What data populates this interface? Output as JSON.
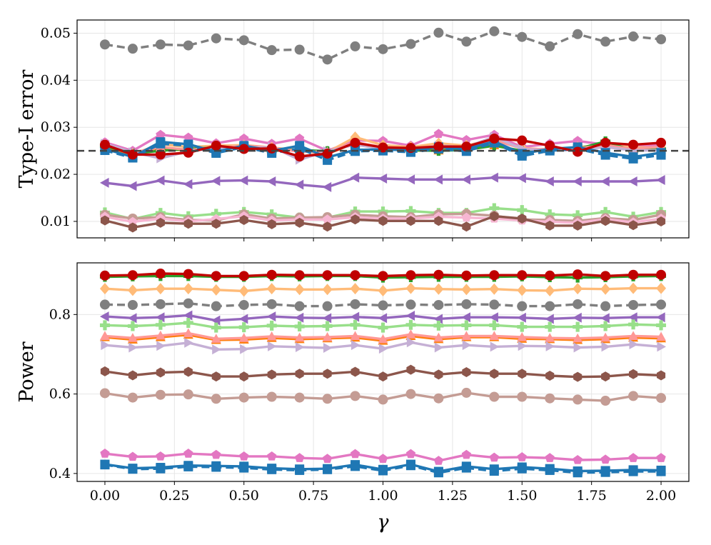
{
  "chart_data": [
    {
      "type": "line",
      "panel": "top",
      "ylabel": "Type-I error",
      "xlabel": "",
      "ylim": [
        0.0065,
        0.0528
      ],
      "yticks": [
        0.01,
        0.02,
        0.03,
        0.04,
        0.05
      ],
      "ytick_labels": [
        "0.01",
        "0.02",
        "0.03",
        "0.04",
        "0.05"
      ],
      "reference_line": 0.025,
      "grid": true,
      "x": [
        0,
        0.1,
        0.2,
        0.3,
        0.4,
        0.5,
        0.6,
        0.7,
        0.8,
        0.9,
        1.0,
        1.1,
        1.2,
        1.3,
        1.4,
        1.5,
        1.6,
        1.7,
        1.8,
        1.9,
        2.0
      ],
      "series": [
        {
          "name": "gray",
          "color": "#7f7f7f",
          "marker": "circle",
          "dashed": true,
          "values": [
            0.0476,
            0.0467,
            0.0476,
            0.0474,
            0.0489,
            0.0485,
            0.0464,
            0.0465,
            0.0444,
            0.0472,
            0.0466,
            0.0477,
            0.0501,
            0.0482,
            0.0504,
            0.0492,
            0.0472,
            0.0498,
            0.0482,
            0.0493,
            0.0487
          ]
        },
        {
          "name": "pink",
          "color": "#e377c2",
          "marker": "pentagon",
          "values": [
            0.0268,
            0.025,
            0.0284,
            0.0278,
            0.0266,
            0.0276,
            0.0265,
            0.0276,
            0.025,
            0.0272,
            0.0271,
            0.0261,
            0.0286,
            0.0273,
            0.0284,
            0.0258,
            0.0265,
            0.0271,
            0.0263,
            0.0258,
            0.0263
          ]
        },
        {
          "name": "orange",
          "color": "#ff7f0e",
          "marker": "triangle-up",
          "values": [
            0.0258,
            0.024,
            0.0254,
            0.0251,
            0.0259,
            0.0257,
            0.0253,
            0.0251,
            0.0244,
            0.0266,
            0.0255,
            0.0256,
            0.0251,
            0.0258,
            0.0262,
            0.0249,
            0.0253,
            0.0251,
            0.0263,
            0.0255,
            0.0252
          ]
        },
        {
          "name": "light-orange",
          "color": "#ffbb78",
          "marker": "diamond",
          "values": [
            0.0263,
            0.0243,
            0.0264,
            0.0258,
            0.0261,
            0.0262,
            0.0257,
            0.0251,
            0.0247,
            0.0279,
            0.0262,
            0.0258,
            0.0266,
            0.0261,
            0.0275,
            0.0256,
            0.0252,
            0.0258,
            0.0262,
            0.0257,
            0.0257
          ]
        },
        {
          "name": "green",
          "color": "#2ca02c",
          "marker": "plus",
          "values": [
            0.026,
            0.0244,
            0.025,
            0.0254,
            0.0257,
            0.0259,
            0.025,
            0.0252,
            0.0249,
            0.0264,
            0.0254,
            0.0251,
            0.025,
            0.0252,
            0.0261,
            0.025,
            0.0254,
            0.0254,
            0.027,
            0.025,
            0.0253
          ]
        },
        {
          "name": "salmon",
          "color": "#ff9896",
          "marker": "triangle-up",
          "values": [
            0.0262,
            0.0246,
            0.0258,
            0.0252,
            0.0256,
            0.0261,
            0.0257,
            0.0248,
            0.0248,
            0.0268,
            0.0258,
            0.0255,
            0.0261,
            0.0256,
            0.0272,
            0.0255,
            0.0253,
            0.0255,
            0.0262,
            0.0254,
            0.0259
          ]
        },
        {
          "name": "lavender",
          "color": "#c5b0d5",
          "marker": "triangle-right",
          "values": [
            0.0265,
            0.0247,
            0.0234,
            0.0249,
            0.0256,
            0.0256,
            0.0258,
            0.0231,
            0.0249,
            0.0263,
            0.0254,
            0.0252,
            0.0261,
            0.0258,
            0.028,
            0.0254,
            0.0251,
            0.0252,
            0.0258,
            0.0251,
            0.0251
          ]
        },
        {
          "name": "blue-dashed",
          "color": "#1f77b4",
          "marker": "square",
          "dashed": true,
          "values": [
            0.0251,
            0.0235,
            0.0265,
            0.0261,
            0.0245,
            0.0258,
            0.0245,
            0.0255,
            0.023,
            0.0249,
            0.025,
            0.0247,
            0.0254,
            0.0249,
            0.0267,
            0.0239,
            0.025,
            0.0254,
            0.0241,
            0.0233,
            0.0241
          ]
        },
        {
          "name": "blue",
          "color": "#1f77b4",
          "marker": "square",
          "values": [
            0.0254,
            0.0237,
            0.0269,
            0.0264,
            0.0248,
            0.0261,
            0.025,
            0.0261,
            0.0236,
            0.0252,
            0.0253,
            0.0251,
            0.0258,
            0.0254,
            0.027,
            0.0244,
            0.0254,
            0.0258,
            0.0246,
            0.0237,
            0.0246
          ]
        },
        {
          "name": "red",
          "color": "#c00000",
          "marker": "circle",
          "values": [
            0.0263,
            0.0242,
            0.0242,
            0.0246,
            0.0261,
            0.0254,
            0.0255,
            0.0238,
            0.0244,
            0.0267,
            0.0257,
            0.0256,
            0.0259,
            0.0259,
            0.0276,
            0.0272,
            0.0261,
            0.0248,
            0.0267,
            0.0263,
            0.0267
          ]
        },
        {
          "name": "purple",
          "color": "#9467bd",
          "marker": "triangle-left",
          "values": [
            0.0182,
            0.0175,
            0.0187,
            0.0179,
            0.0186,
            0.0187,
            0.0185,
            0.0178,
            0.0173,
            0.0193,
            0.0191,
            0.0189,
            0.0189,
            0.0189,
            0.0193,
            0.0192,
            0.0185,
            0.0185,
            0.0185,
            0.0185,
            0.0188
          ]
        },
        {
          "name": "light-green",
          "color": "#98df8a",
          "marker": "plus",
          "values": [
            0.0119,
            0.0105,
            0.0118,
            0.0111,
            0.0116,
            0.012,
            0.0115,
            0.0108,
            0.0108,
            0.0121,
            0.0121,
            0.0122,
            0.0118,
            0.0118,
            0.0128,
            0.0124,
            0.0115,
            0.0113,
            0.012,
            0.011,
            0.012
          ]
        },
        {
          "name": "rosy-brown",
          "color": "#c49c94",
          "marker": "circle",
          "values": [
            0.0114,
            0.0106,
            0.0109,
            0.0103,
            0.0102,
            0.0115,
            0.0106,
            0.0108,
            0.0109,
            0.0114,
            0.0111,
            0.0109,
            0.0115,
            0.0116,
            0.0112,
            0.0104,
            0.0103,
            0.0101,
            0.0107,
            0.0103,
            0.0114
          ]
        },
        {
          "name": "light-pink",
          "color": "#f7b6d2",
          "marker": "pentagon",
          "values": [
            0.011,
            0.0099,
            0.0106,
            0.01,
            0.0105,
            0.0111,
            0.0102,
            0.0104,
            0.0104,
            0.0109,
            0.0106,
            0.0106,
            0.011,
            0.0108,
            0.0106,
            0.0102,
            0.0099,
            0.0097,
            0.0105,
            0.0098,
            0.0106
          ]
        },
        {
          "name": "brown",
          "color": "#8c564b",
          "marker": "hexagon",
          "values": [
            0.0102,
            0.0087,
            0.0097,
            0.0095,
            0.0095,
            0.0103,
            0.0094,
            0.0097,
            0.0089,
            0.0104,
            0.0101,
            0.0101,
            0.0101,
            0.0089,
            0.0111,
            0.0106,
            0.0091,
            0.0091,
            0.0101,
            0.0092,
            0.01
          ]
        }
      ]
    },
    {
      "type": "line",
      "panel": "bottom",
      "ylabel": "Power",
      "xlabel": "γ",
      "ylim": [
        0.38,
        0.93
      ],
      "yticks": [
        0.4,
        0.6,
        0.8
      ],
      "ytick_labels": [
        "0.4",
        "0.6",
        "0.8"
      ],
      "xticks": [
        0,
        0.25,
        0.5,
        0.75,
        1.0,
        1.25,
        1.5,
        1.75,
        2.0
      ],
      "xtick_labels": [
        "0.00",
        "0.25",
        "0.50",
        "0.75",
        "1.00",
        "1.25",
        "1.50",
        "1.75",
        "2.00"
      ],
      "grid": true,
      "x": [
        0,
        0.1,
        0.2,
        0.3,
        0.4,
        0.5,
        0.6,
        0.7,
        0.8,
        0.9,
        1.0,
        1.1,
        1.2,
        1.3,
        1.4,
        1.5,
        1.6,
        1.7,
        1.8,
        1.9,
        2.0
      ],
      "series": [
        {
          "name": "green",
          "color": "#2ca02c",
          "marker": "plus",
          "values": [
            0.895,
            0.896,
            0.897,
            0.897,
            0.895,
            0.895,
            0.897,
            0.896,
            0.897,
            0.897,
            0.893,
            0.894,
            0.895,
            0.895,
            0.895,
            0.896,
            0.894,
            0.893,
            0.894,
            0.896,
            0.897
          ]
        },
        {
          "name": "red",
          "color": "#c00000",
          "marker": "circle",
          "values": [
            0.898,
            0.899,
            0.903,
            0.902,
            0.897,
            0.897,
            0.9,
            0.899,
            0.899,
            0.899,
            0.897,
            0.899,
            0.9,
            0.898,
            0.899,
            0.899,
            0.898,
            0.901,
            0.897,
            0.9,
            0.9
          ]
        },
        {
          "name": "light-orange",
          "color": "#ffbb78",
          "marker": "diamond",
          "values": [
            0.865,
            0.861,
            0.865,
            0.865,
            0.862,
            0.859,
            0.865,
            0.863,
            0.863,
            0.865,
            0.86,
            0.866,
            0.864,
            0.863,
            0.864,
            0.861,
            0.86,
            0.865,
            0.864,
            0.866,
            0.866
          ]
        },
        {
          "name": "gray",
          "color": "#7f7f7f",
          "marker": "circle",
          "dashed": true,
          "values": [
            0.825,
            0.824,
            0.826,
            0.828,
            0.821,
            0.824,
            0.826,
            0.821,
            0.821,
            0.826,
            0.823,
            0.825,
            0.824,
            0.826,
            0.825,
            0.821,
            0.821,
            0.826,
            0.821,
            0.824,
            0.825
          ]
        },
        {
          "name": "purple",
          "color": "#9467bd",
          "marker": "triangle-left",
          "values": [
            0.795,
            0.791,
            0.793,
            0.798,
            0.785,
            0.789,
            0.795,
            0.792,
            0.791,
            0.794,
            0.791,
            0.797,
            0.789,
            0.793,
            0.793,
            0.792,
            0.789,
            0.792,
            0.791,
            0.793,
            0.793
          ]
        },
        {
          "name": "light-green",
          "color": "#98df8a",
          "marker": "plus",
          "values": [
            0.773,
            0.771,
            0.774,
            0.779,
            0.767,
            0.768,
            0.772,
            0.77,
            0.771,
            0.774,
            0.767,
            0.774,
            0.772,
            0.773,
            0.773,
            0.769,
            0.769,
            0.769,
            0.771,
            0.775,
            0.773
          ]
        },
        {
          "name": "orange",
          "color": "#ff7f0e",
          "marker": "triangle-up",
          "values": [
            0.743,
            0.737,
            0.743,
            0.749,
            0.736,
            0.737,
            0.741,
            0.738,
            0.74,
            0.742,
            0.734,
            0.746,
            0.738,
            0.743,
            0.743,
            0.739,
            0.738,
            0.736,
            0.738,
            0.742,
            0.74
          ]
        },
        {
          "name": "salmon",
          "color": "#ff9896",
          "marker": "triangle-up",
          "values": [
            0.746,
            0.741,
            0.747,
            0.753,
            0.739,
            0.741,
            0.745,
            0.742,
            0.743,
            0.746,
            0.738,
            0.75,
            0.742,
            0.746,
            0.746,
            0.743,
            0.741,
            0.74,
            0.742,
            0.746,
            0.744
          ]
        },
        {
          "name": "lavender",
          "color": "#c5b0d5",
          "marker": "triangle-right",
          "values": [
            0.723,
            0.717,
            0.721,
            0.729,
            0.712,
            0.713,
            0.72,
            0.718,
            0.716,
            0.723,
            0.714,
            0.73,
            0.717,
            0.723,
            0.719,
            0.721,
            0.72,
            0.717,
            0.719,
            0.725,
            0.719
          ]
        },
        {
          "name": "brown",
          "color": "#8c564b",
          "marker": "hexagon",
          "values": [
            0.657,
            0.647,
            0.654,
            0.656,
            0.644,
            0.644,
            0.649,
            0.651,
            0.651,
            0.656,
            0.644,
            0.661,
            0.649,
            0.655,
            0.651,
            0.651,
            0.646,
            0.643,
            0.644,
            0.65,
            0.647
          ]
        },
        {
          "name": "rosy-brown",
          "color": "#c49c94",
          "marker": "circle",
          "values": [
            0.602,
            0.591,
            0.598,
            0.599,
            0.588,
            0.591,
            0.593,
            0.591,
            0.588,
            0.595,
            0.586,
            0.6,
            0.589,
            0.603,
            0.593,
            0.593,
            0.589,
            0.586,
            0.583,
            0.595,
            0.59
          ]
        },
        {
          "name": "pink",
          "color": "#e377c2",
          "marker": "pentagon",
          "values": [
            0.45,
            0.442,
            0.443,
            0.45,
            0.447,
            0.443,
            0.443,
            0.439,
            0.437,
            0.449,
            0.437,
            0.449,
            0.432,
            0.447,
            0.44,
            0.441,
            0.439,
            0.434,
            0.435,
            0.439,
            0.439
          ]
        },
        {
          "name": "blue-dashed",
          "color": "#1f77b4",
          "marker": "square",
          "dashed": true,
          "values": [
            0.422,
            0.411,
            0.412,
            0.417,
            0.416,
            0.414,
            0.41,
            0.408,
            0.41,
            0.418,
            0.407,
            0.42,
            0.402,
            0.414,
            0.406,
            0.412,
            0.408,
            0.402,
            0.403,
            0.405,
            0.405
          ]
        },
        {
          "name": "blue",
          "color": "#1f77b4",
          "marker": "square",
          "values": [
            0.423,
            0.413,
            0.415,
            0.42,
            0.419,
            0.418,
            0.413,
            0.411,
            0.412,
            0.422,
            0.41,
            0.423,
            0.405,
            0.418,
            0.411,
            0.416,
            0.412,
            0.406,
            0.407,
            0.409,
            0.408
          ]
        }
      ]
    }
  ]
}
